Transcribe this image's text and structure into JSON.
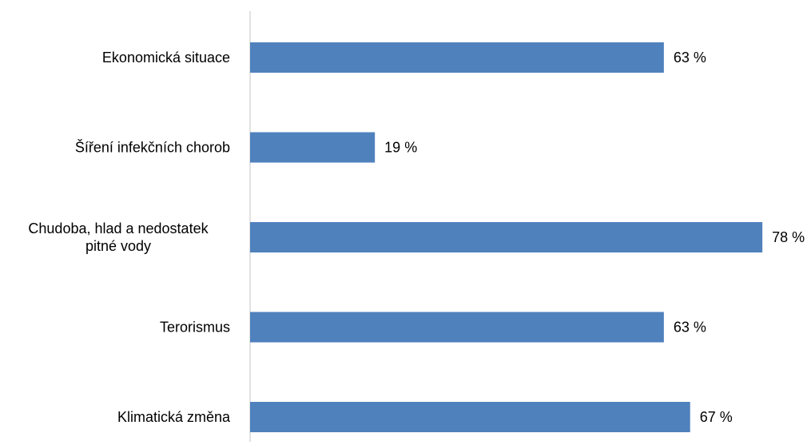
{
  "chart_data": {
    "type": "bar",
    "orientation": "horizontal",
    "categories": [
      [
        "Ekonomická situace"
      ],
      [
        "Šíření infekčních chorob"
      ],
      [
        "Chudoba, hlad a nedostatek",
        "pitné vody"
      ],
      [
        "Terorismus"
      ],
      [
        "Klimatická změna"
      ]
    ],
    "values": [
      63,
      19,
      78,
      63,
      67
    ],
    "value_labels": [
      "63 %",
      "19 %",
      "78 %",
      "63 %",
      "67 %"
    ],
    "unit": "%",
    "bar_color": "#4f81bd",
    "axis_color": "#d9d9d9",
    "grid": false,
    "legend": "none"
  }
}
